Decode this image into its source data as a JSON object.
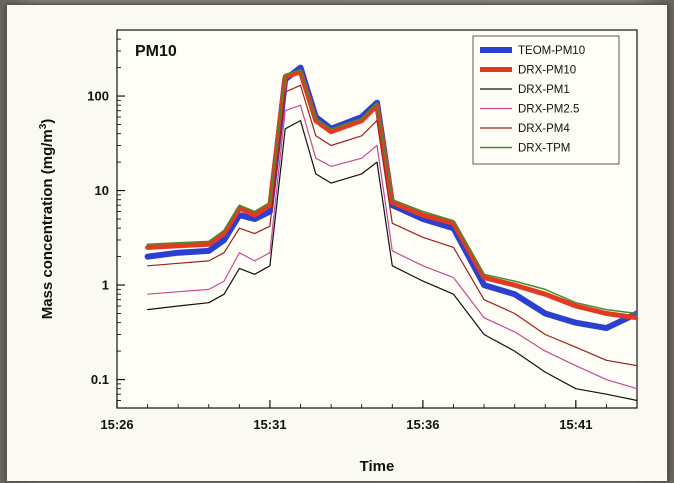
{
  "chart_data": {
    "type": "line",
    "title": "PM10",
    "xlabel": "Time",
    "ylabel": "Mass concentration (mg/m",
    "ylabel_superscript": "3",
    "ylabel_close": ")",
    "yscale": "log",
    "ylim": [
      0.05,
      500
    ],
    "xlim": [
      "15:26",
      "15:43"
    ],
    "x_ticks": [
      "15:26",
      "15:31",
      "15:36",
      "15:41"
    ],
    "y_ticks": [
      "0.1",
      "1",
      "10",
      "100"
    ],
    "legend_placement": "top-right",
    "x": [
      "15:27",
      "15:28",
      "15:29",
      "15:29.5",
      "15:30",
      "15:30.5",
      "15:31",
      "15:31.5",
      "15:32",
      "15:32.5",
      "15:33",
      "15:34",
      "15:34.5",
      "15:35",
      "15:36",
      "15:37",
      "15:38",
      "15:39",
      "15:40",
      "15:41",
      "15:42",
      "15:43"
    ],
    "series": [
      {
        "name": "TEOM-PM10",
        "color": "#2b3fd1",
        "width": 6,
        "values": [
          2.0,
          2.2,
          2.3,
          3.0,
          5.5,
          5.0,
          6.0,
          150,
          200,
          60,
          45,
          60,
          85,
          7,
          5,
          4,
          1.0,
          0.8,
          0.5,
          0.4,
          0.35,
          0.5
        ]
      },
      {
        "name": "DRX-PM10",
        "color": "#e03a22",
        "width": 5,
        "values": [
          2.5,
          2.6,
          2.7,
          3.5,
          6.5,
          5.5,
          7.0,
          160,
          180,
          55,
          42,
          55,
          80,
          7.5,
          5.5,
          4.5,
          1.2,
          1.0,
          0.8,
          0.6,
          0.5,
          0.45
        ]
      },
      {
        "name": "DRX-PM1",
        "color": "#111111",
        "width": 1.2,
        "values": [
          0.55,
          0.6,
          0.65,
          0.8,
          1.5,
          1.3,
          1.6,
          45,
          55,
          15,
          12,
          15,
          20,
          1.6,
          1.1,
          0.8,
          0.3,
          0.2,
          0.12,
          0.08,
          0.07,
          0.06
        ]
      },
      {
        "name": "DRX-PM2.5",
        "color": "#c84a95",
        "width": 1.2,
        "values": [
          0.8,
          0.85,
          0.9,
          1.1,
          2.2,
          1.8,
          2.2,
          70,
          80,
          22,
          18,
          22,
          30,
          2.3,
          1.6,
          1.2,
          0.45,
          0.32,
          0.2,
          0.14,
          0.1,
          0.08
        ]
      },
      {
        "name": "DRX-PM4",
        "color": "#9e1f1f",
        "width": 1.2,
        "values": [
          1.6,
          1.7,
          1.8,
          2.2,
          4.0,
          3.5,
          4.2,
          110,
          130,
          38,
          30,
          38,
          55,
          4.5,
          3.2,
          2.5,
          0.7,
          0.5,
          0.3,
          0.22,
          0.16,
          0.14
        ]
      },
      {
        "name": "DRX-TPM",
        "color": "#4a8a2e",
        "width": 1.5,
        "values": [
          2.7,
          2.8,
          2.9,
          3.8,
          7.0,
          6.0,
          7.5,
          170,
          190,
          58,
          45,
          58,
          85,
          8.0,
          6.0,
          4.8,
          1.3,
          1.1,
          0.9,
          0.65,
          0.55,
          0.5
        ]
      }
    ]
  }
}
